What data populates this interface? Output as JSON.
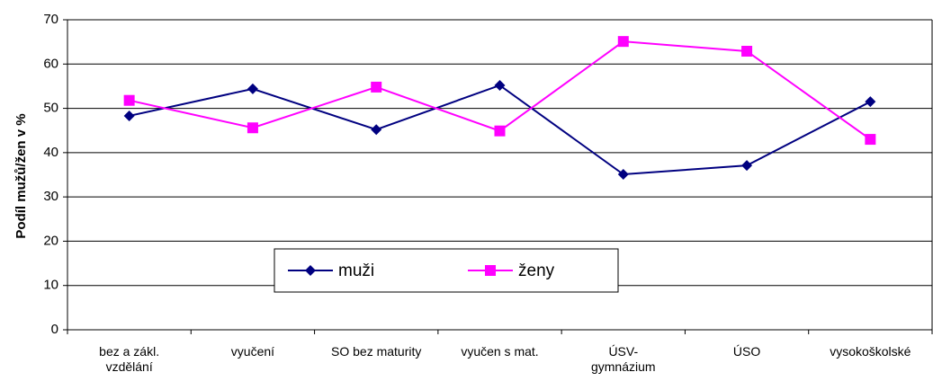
{
  "chart_data": {
    "type": "line",
    "y_label": "Podíl mužů/žen v %",
    "categories": [
      "bez a zákl.\nvzdělání",
      "vyučení",
      "SO bez maturity",
      "vyučen s mat.",
      "ÚSV-\ngymnázium",
      "ÚSO",
      "vysokoškolské"
    ],
    "series": [
      {
        "name": "muži",
        "color": "#000080",
        "marker": "diamond",
        "values": [
          48.3,
          54.4,
          45.2,
          55.2,
          35.1,
          37.1,
          51.5
        ]
      },
      {
        "name": "ženy",
        "color": "#ff00ff",
        "marker": "square",
        "values": [
          51.8,
          45.6,
          54.8,
          44.9,
          65.1,
          62.9,
          43.0
        ]
      }
    ],
    "ylim": [
      0,
      70
    ],
    "yticks": [
      0,
      10,
      20,
      30,
      40,
      50,
      60,
      70
    ],
    "grid": true
  }
}
